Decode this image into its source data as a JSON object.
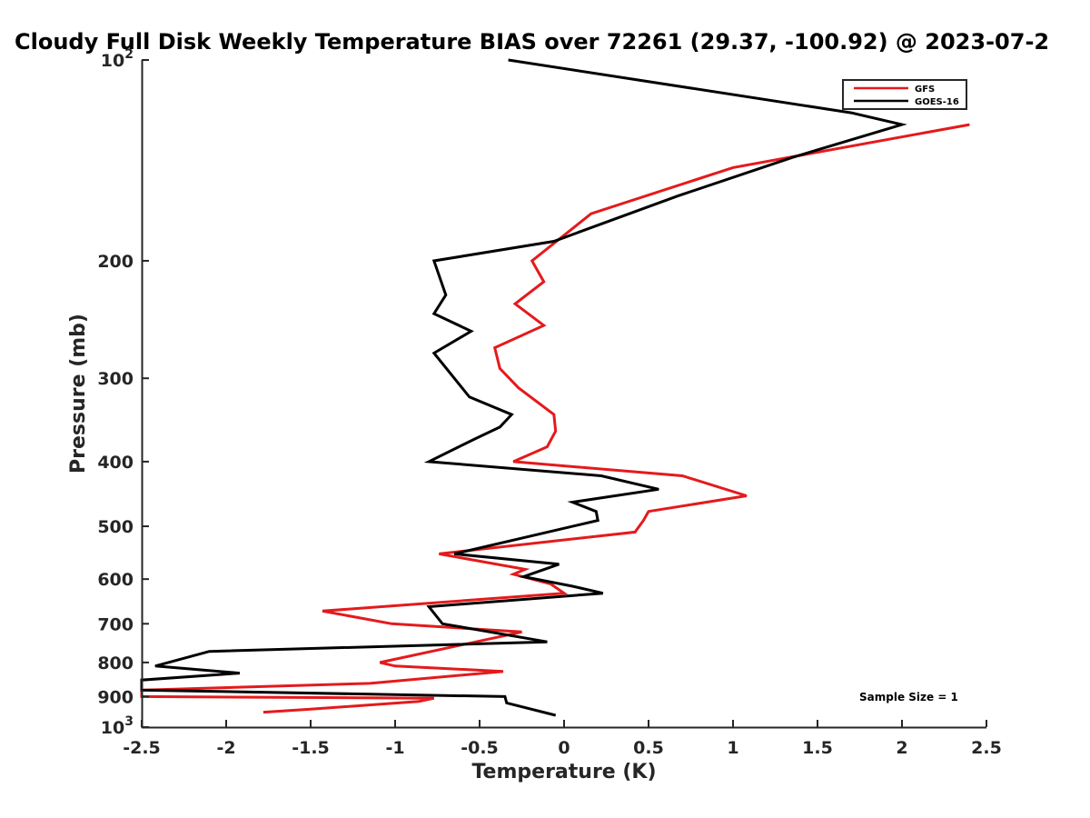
{
  "chart_data": {
    "type": "line",
    "title": "Cloudy Full Disk Weekly Temperature BIAS over 72261 (29.37, -100.92) @ 2023-07-2",
    "xlabel": "Temperature (K)",
    "ylabel": "Pressure (mb)",
    "xlim": [
      -2.5,
      2.5
    ],
    "ylim": [
      100,
      1000
    ],
    "y_scale": "log",
    "y_reversed": true,
    "grid": false,
    "legend_position": "top-right",
    "x_ticks": [
      {
        "value": -2.5,
        "label": "-2.5"
      },
      {
        "value": -2,
        "label": "-2"
      },
      {
        "value": -1.5,
        "label": "-1.5"
      },
      {
        "value": -1,
        "label": "-1"
      },
      {
        "value": -0.5,
        "label": "-0.5"
      },
      {
        "value": 0,
        "label": "0"
      },
      {
        "value": 0.5,
        "label": "0.5"
      },
      {
        "value": 1,
        "label": "1"
      },
      {
        "value": 1.5,
        "label": "1.5"
      },
      {
        "value": 2,
        "label": "2"
      },
      {
        "value": 2.5,
        "label": "2.5"
      }
    ],
    "y_ticks": [
      {
        "value": 100,
        "label": "10",
        "sup": "2"
      },
      {
        "value": 200,
        "label": "200"
      },
      {
        "value": 300,
        "label": "300"
      },
      {
        "value": 400,
        "label": "400"
      },
      {
        "value": 500,
        "label": "500"
      },
      {
        "value": 600,
        "label": "600"
      },
      {
        "value": 700,
        "label": "700"
      },
      {
        "value": 800,
        "label": "800"
      },
      {
        "value": 900,
        "label": "900"
      },
      {
        "value": 1000,
        "label": "10",
        "sup": "3"
      }
    ],
    "series": [
      {
        "name": "GFS",
        "color": "#e41a1c",
        "points": [
          [
            2.4,
            125
          ],
          [
            1.0,
            145
          ],
          [
            0.16,
            170
          ],
          [
            -0.19,
            200
          ],
          [
            -0.12,
            215
          ],
          [
            -0.29,
            232
          ],
          [
            -0.12,
            250
          ],
          [
            -0.41,
            270
          ],
          [
            -0.38,
            290
          ],
          [
            -0.27,
            310
          ],
          [
            -0.06,
            340
          ],
          [
            -0.05,
            360
          ],
          [
            -0.1,
            380
          ],
          [
            -0.3,
            400
          ],
          [
            0.7,
            420
          ],
          [
            1.08,
            450
          ],
          [
            0.5,
            475
          ],
          [
            0.47,
            490
          ],
          [
            0.42,
            510
          ],
          [
            -0.74,
            550
          ],
          [
            -0.23,
            580
          ],
          [
            -0.3,
            590
          ],
          [
            -0.08,
            610
          ],
          [
            0.0,
            630
          ],
          [
            -1.43,
            670
          ],
          [
            -1.02,
            700
          ],
          [
            -0.25,
            720
          ],
          [
            -1.09,
            800
          ],
          [
            -1.0,
            810
          ],
          [
            -0.36,
            825
          ],
          [
            -1.15,
            860
          ],
          [
            -2.5,
            880
          ],
          [
            -2.5,
            900
          ],
          [
            -0.77,
            905
          ],
          [
            -0.86,
            915
          ],
          [
            -1.5,
            940
          ],
          [
            -1.78,
            950
          ]
        ]
      },
      {
        "name": "GOES-16",
        "color": "#000000",
        "points": [
          [
            -0.33,
            100
          ],
          [
            1.7,
            120
          ],
          [
            2.0,
            125
          ],
          [
            1.35,
            140
          ],
          [
            0.67,
            160
          ],
          [
            -0.06,
            187
          ],
          [
            -0.77,
            200
          ],
          [
            -0.7,
            225
          ],
          [
            -0.77,
            240
          ],
          [
            -0.55,
            255
          ],
          [
            -0.77,
            275
          ],
          [
            -0.56,
            320
          ],
          [
            -0.31,
            340
          ],
          [
            -0.38,
            355
          ],
          [
            -0.53,
            370
          ],
          [
            -0.8,
            400
          ],
          [
            0.22,
            420
          ],
          [
            0.56,
            440
          ],
          [
            0.05,
            460
          ],
          [
            0.19,
            475
          ],
          [
            0.2,
            490
          ],
          [
            -0.65,
            550
          ],
          [
            -0.03,
            570
          ],
          [
            -0.24,
            595
          ],
          [
            0.05,
            615
          ],
          [
            0.23,
            630
          ],
          [
            -0.8,
            660
          ],
          [
            -0.72,
            700
          ],
          [
            -0.1,
            745
          ],
          [
            -2.1,
            770
          ],
          [
            -2.42,
            810
          ],
          [
            -1.92,
            830
          ],
          [
            -2.5,
            850
          ],
          [
            -2.5,
            880
          ],
          [
            -0.35,
            900
          ],
          [
            -0.34,
            920
          ],
          [
            -0.05,
            960
          ]
        ]
      }
    ],
    "annotations": [
      {
        "text": "Sample Size = 1"
      }
    ]
  }
}
